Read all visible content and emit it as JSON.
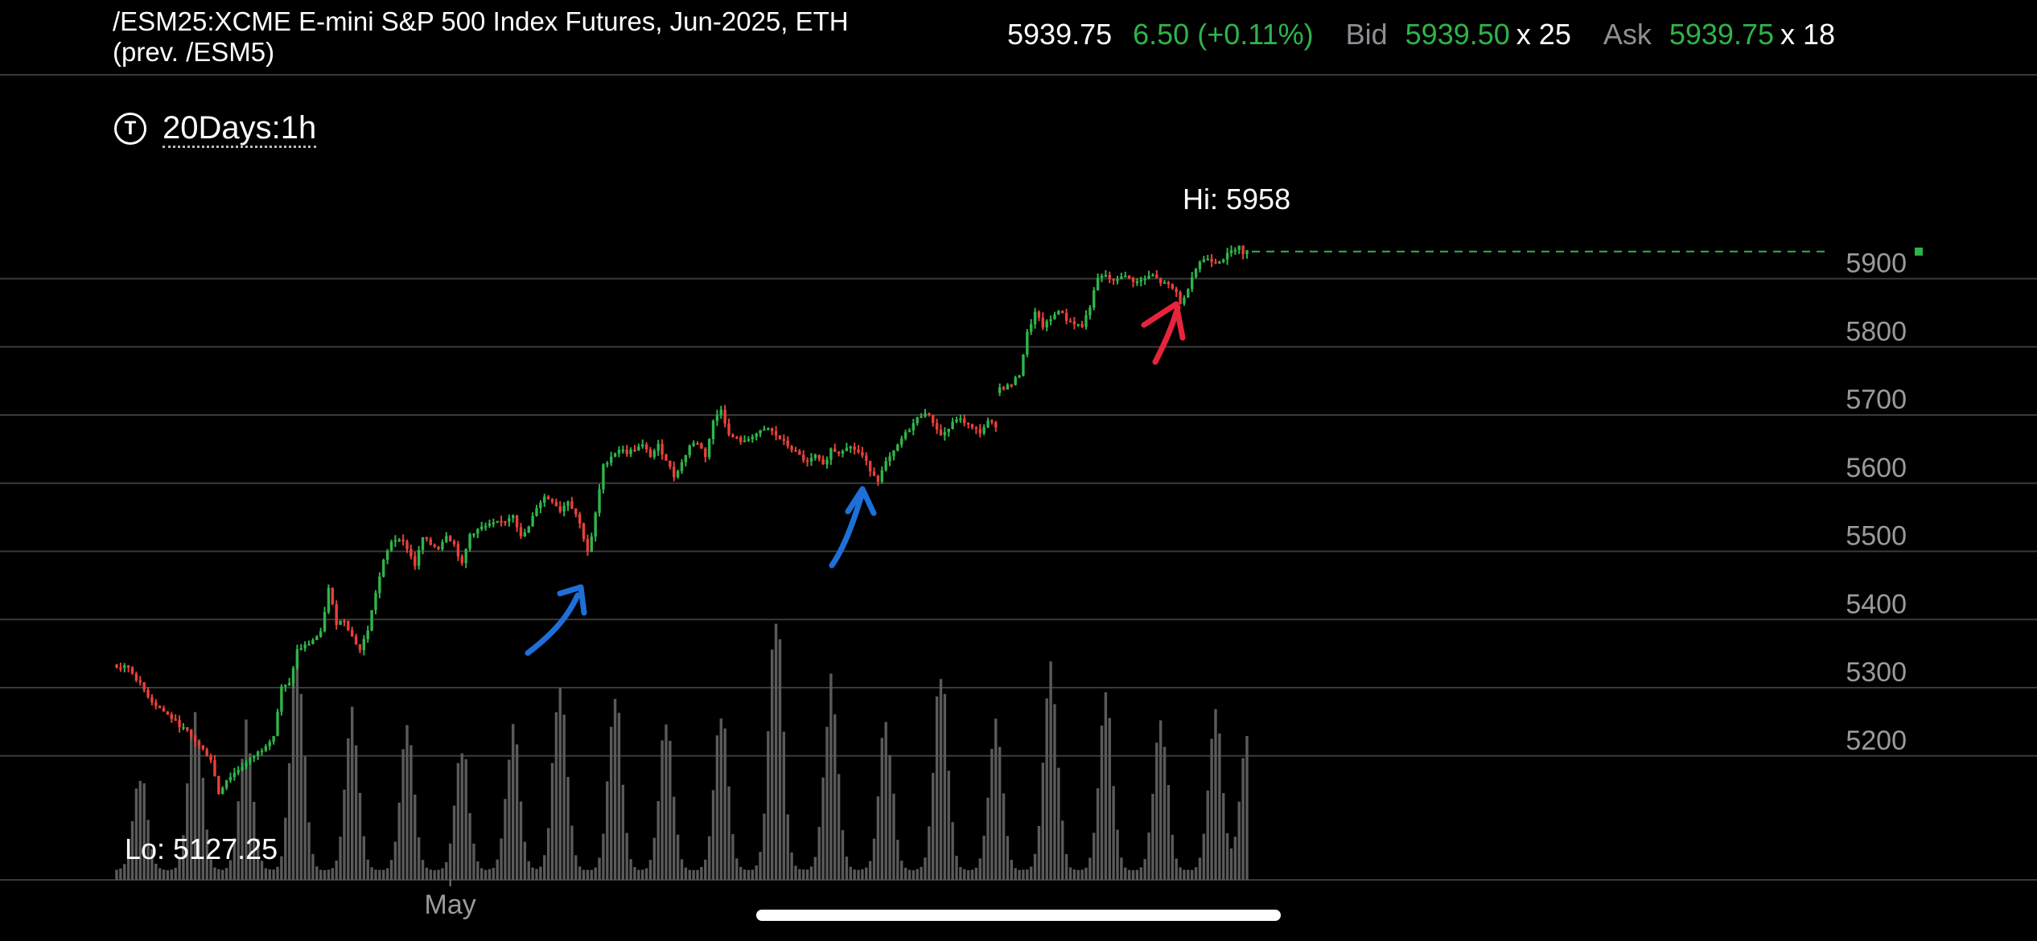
{
  "header": {
    "title_line1": "/ESM25:XCME E-mini S&P 500 Index Futures, Jun-2025, ETH",
    "title_line2": "(prev. /ESM5)",
    "last": "5939.75",
    "change": "6.50 (+0.11%)",
    "bid_label": "Bid",
    "bid": "5939.50",
    "bid_size": "x 25",
    "ask_label": "Ask",
    "ask": "5939.75",
    "ask_size": "x 18"
  },
  "timeframe": {
    "icon": "T",
    "label": "20Days:1h"
  },
  "colors": {
    "up": "#2fb44a",
    "down": "#e8403a",
    "annotation_blue": "#1e6fd8",
    "annotation_red": "#e8243c"
  },
  "chart_data": {
    "type": "candlestick",
    "symbol": "/ESM25",
    "interval": "1h",
    "range": "20Days",
    "high_label": "Hi: 5958",
    "low_label": "Lo: 5127.25",
    "high": 5958,
    "low": 5127.25,
    "last_price": 5939.75,
    "y_ticks": [
      5200,
      5300,
      5400,
      5500,
      5600,
      5700,
      5800,
      5900
    ],
    "ylim": [
      5085,
      5965
    ],
    "x_tick_labels": [
      {
        "label": "May",
        "index": 85
      }
    ],
    "close_path_anchors": [
      [
        0,
        5330
      ],
      [
        3,
        5330
      ],
      [
        6,
        5305
      ],
      [
        9,
        5280
      ],
      [
        12,
        5265
      ],
      [
        15,
        5250
      ],
      [
        18,
        5235
      ],
      [
        21,
        5215
      ],
      [
        24,
        5195
      ],
      [
        26,
        5145
      ],
      [
        28,
        5165
      ],
      [
        31,
        5180
      ],
      [
        34,
        5195
      ],
      [
        37,
        5210
      ],
      [
        40,
        5230
      ],
      [
        42,
        5300
      ],
      [
        44,
        5305
      ],
      [
        46,
        5355
      ],
      [
        49,
        5365
      ],
      [
        52,
        5380
      ],
      [
        54,
        5445
      ],
      [
        56,
        5395
      ],
      [
        58,
        5400
      ],
      [
        60,
        5375
      ],
      [
        62,
        5355
      ],
      [
        64,
        5385
      ],
      [
        66,
        5440
      ],
      [
        68,
        5485
      ],
      [
        70,
        5515
      ],
      [
        72,
        5520
      ],
      [
        74,
        5505
      ],
      [
        76,
        5480
      ],
      [
        78,
        5520
      ],
      [
        80,
        5510
      ],
      [
        82,
        5505
      ],
      [
        84,
        5525
      ],
      [
        86,
        5510
      ],
      [
        88,
        5480
      ],
      [
        90,
        5525
      ],
      [
        93,
        5535
      ],
      [
        96,
        5540
      ],
      [
        99,
        5545
      ],
      [
        101,
        5555
      ],
      [
        103,
        5520
      ],
      [
        105,
        5535
      ],
      [
        107,
        5565
      ],
      [
        109,
        5580
      ],
      [
        111,
        5575
      ],
      [
        113,
        5560
      ],
      [
        115,
        5575
      ],
      [
        117,
        5555
      ],
      [
        118,
        5540
      ],
      [
        120,
        5500
      ],
      [
        121,
        5520
      ],
      [
        122,
        5555
      ],
      [
        124,
        5625
      ],
      [
        126,
        5640
      ],
      [
        128,
        5650
      ],
      [
        130,
        5645
      ],
      [
        132,
        5650
      ],
      [
        134,
        5655
      ],
      [
        136,
        5640
      ],
      [
        138,
        5655
      ],
      [
        140,
        5635
      ],
      [
        142,
        5610
      ],
      [
        144,
        5630
      ],
      [
        146,
        5655
      ],
      [
        148,
        5660
      ],
      [
        150,
        5640
      ],
      [
        152,
        5690
      ],
      [
        154,
        5710
      ],
      [
        156,
        5670
      ],
      [
        158,
        5665
      ],
      [
        160,
        5660
      ],
      [
        162,
        5670
      ],
      [
        164,
        5675
      ],
      [
        166,
        5680
      ],
      [
        168,
        5670
      ],
      [
        170,
        5660
      ],
      [
        172,
        5650
      ],
      [
        174,
        5640
      ],
      [
        176,
        5630
      ],
      [
        178,
        5640
      ],
      [
        180,
        5625
      ],
      [
        182,
        5650
      ],
      [
        184,
        5645
      ],
      [
        186,
        5655
      ],
      [
        188,
        5650
      ],
      [
        190,
        5640
      ],
      [
        192,
        5620
      ],
      [
        194,
        5605
      ],
      [
        196,
        5630
      ],
      [
        198,
        5645
      ],
      [
        200,
        5665
      ],
      [
        202,
        5680
      ],
      [
        204,
        5695
      ],
      [
        206,
        5705
      ],
      [
        208,
        5690
      ],
      [
        210,
        5670
      ],
      [
        212,
        5680
      ],
      [
        214,
        5695
      ],
      [
        216,
        5690
      ],
      [
        218,
        5680
      ],
      [
        220,
        5675
      ],
      [
        222,
        5690
      ],
      [
        224,
        5685
      ]
    ],
    "close_path_anchors_segment2": [
      [
        226,
        5740
      ],
      [
        228,
        5745
      ],
      [
        230,
        5760
      ],
      [
        232,
        5820
      ],
      [
        234,
        5850
      ],
      [
        236,
        5830
      ],
      [
        238,
        5840
      ],
      [
        240,
        5855
      ],
      [
        242,
        5840
      ],
      [
        244,
        5835
      ],
      [
        246,
        5830
      ],
      [
        248,
        5860
      ],
      [
        250,
        5900
      ],
      [
        252,
        5905
      ],
      [
        254,
        5895
      ],
      [
        256,
        5905
      ],
      [
        258,
        5900
      ],
      [
        260,
        5895
      ],
      [
        262,
        5900
      ],
      [
        264,
        5905
      ],
      [
        266,
        5895
      ],
      [
        268,
        5890
      ],
      [
        270,
        5880
      ],
      [
        271,
        5865
      ],
      [
        272,
        5870
      ],
      [
        274,
        5905
      ],
      [
        276,
        5925
      ],
      [
        278,
        5930
      ],
      [
        280,
        5925
      ],
      [
        282,
        5930
      ],
      [
        284,
        5940
      ],
      [
        286,
        5950
      ],
      [
        287,
        5935
      ],
      [
        288,
        5939.75
      ]
    ],
    "gap_after_index": 224,
    "volume_sessions": [
      {
        "center": 6,
        "peak": 0.38
      },
      {
        "center": 20,
        "peak": 0.66
      },
      {
        "center": 33,
        "peak": 0.55
      },
      {
        "center": 46,
        "peak": 0.86
      },
      {
        "center": 60,
        "peak": 0.6
      },
      {
        "center": 74,
        "peak": 0.54
      },
      {
        "center": 88,
        "peak": 0.48
      },
      {
        "center": 101,
        "peak": 0.55
      },
      {
        "center": 113,
        "peak": 0.78
      },
      {
        "center": 127,
        "peak": 0.7
      },
      {
        "center": 140,
        "peak": 0.58
      },
      {
        "center": 154,
        "peak": 0.65
      },
      {
        "center": 168,
        "peak": 1.0
      },
      {
        "center": 182,
        "peak": 0.72
      },
      {
        "center": 196,
        "peak": 0.57
      },
      {
        "center": 210,
        "peak": 0.79
      },
      {
        "center": 224,
        "peak": 0.6
      },
      {
        "center": 238,
        "peak": 0.84
      },
      {
        "center": 252,
        "peak": 0.66
      },
      {
        "center": 266,
        "peak": 0.61
      },
      {
        "center": 280,
        "peak": 0.63
      },
      {
        "center": 288,
        "peak": 0.52
      }
    ],
    "candle_count": 289
  }
}
